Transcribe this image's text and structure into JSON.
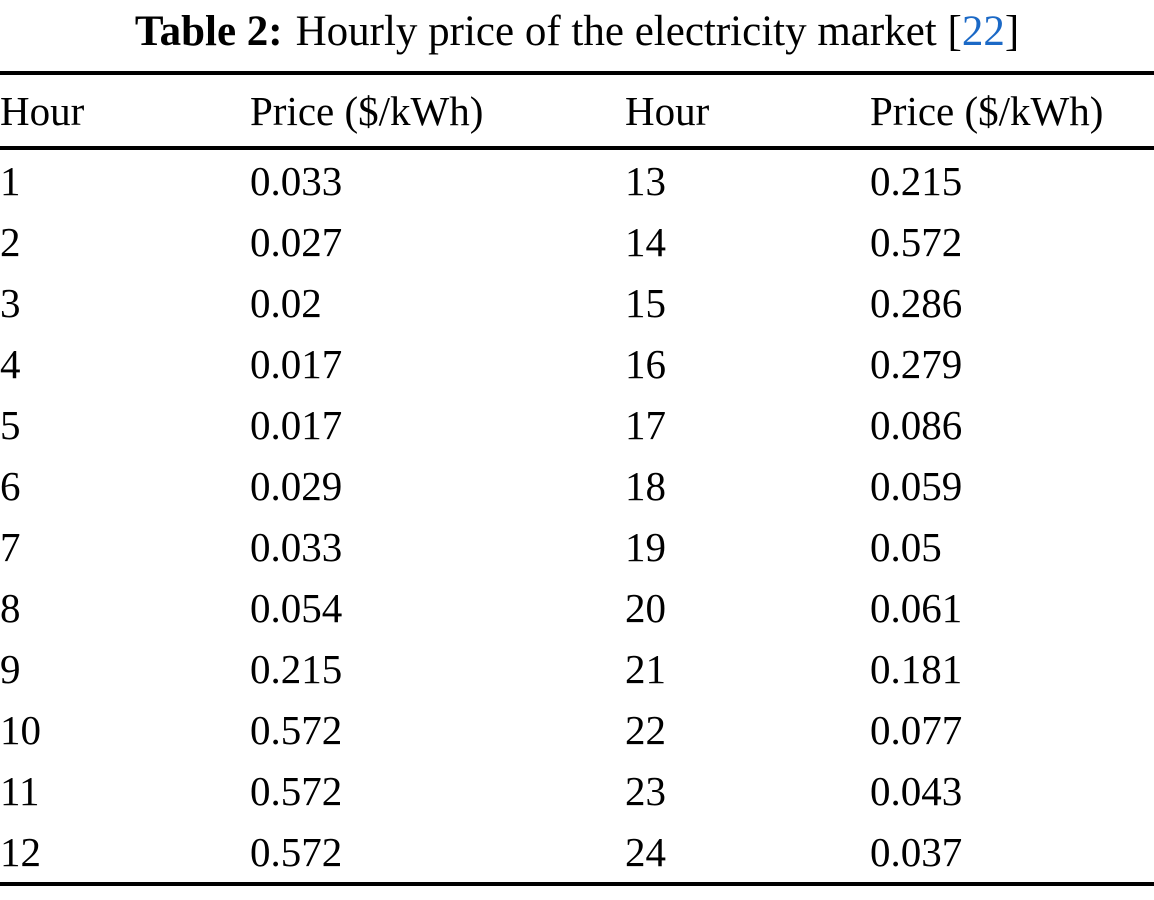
{
  "caption": {
    "label": "Table 2:",
    "text": "Hourly price of the electricity market",
    "citation_prefix": "[",
    "citation_number": "22",
    "citation_suffix": "]"
  },
  "table": {
    "headers": [
      "Hour",
      "Price ($/kWh)",
      "Hour",
      "Price ($/kWh)"
    ],
    "rows": [
      [
        "1",
        "0.033",
        "13",
        "0.215"
      ],
      [
        "2",
        "0.027",
        "14",
        "0.572"
      ],
      [
        "3",
        "0.02",
        "15",
        "0.286"
      ],
      [
        "4",
        "0.017",
        "16",
        "0.279"
      ],
      [
        "5",
        "0.017",
        "17",
        "0.086"
      ],
      [
        "6",
        "0.029",
        "18",
        "0.059"
      ],
      [
        "7",
        "0.033",
        "19",
        "0.05"
      ],
      [
        "8",
        "0.054",
        "20",
        "0.061"
      ],
      [
        "9",
        "0.215",
        "21",
        "0.181"
      ],
      [
        "10",
        "0.572",
        "22",
        "0.077"
      ],
      [
        "11",
        "0.572",
        "23",
        "0.043"
      ],
      [
        "12",
        "0.572",
        "24",
        "0.037"
      ]
    ]
  },
  "colors": {
    "text": "#000000",
    "background": "#ffffff",
    "rule": "#000000",
    "citation_blue": "#1b69c6"
  },
  "chart_data": {
    "type": "table",
    "title": "Table 2: Hourly price of the electricity market [22]",
    "columns": [
      "Hour",
      "Price ($/kWh)"
    ],
    "x": [
      1,
      2,
      3,
      4,
      5,
      6,
      7,
      8,
      9,
      10,
      11,
      12,
      13,
      14,
      15,
      16,
      17,
      18,
      19,
      20,
      21,
      22,
      23,
      24
    ],
    "values": [
      0.033,
      0.027,
      0.02,
      0.017,
      0.017,
      0.029,
      0.033,
      0.054,
      0.215,
      0.572,
      0.572,
      0.572,
      0.215,
      0.572,
      0.286,
      0.279,
      0.086,
      0.059,
      0.05,
      0.061,
      0.181,
      0.077,
      0.043,
      0.037
    ],
    "xlabel": "Hour",
    "ylabel": "Price ($/kWh)"
  }
}
